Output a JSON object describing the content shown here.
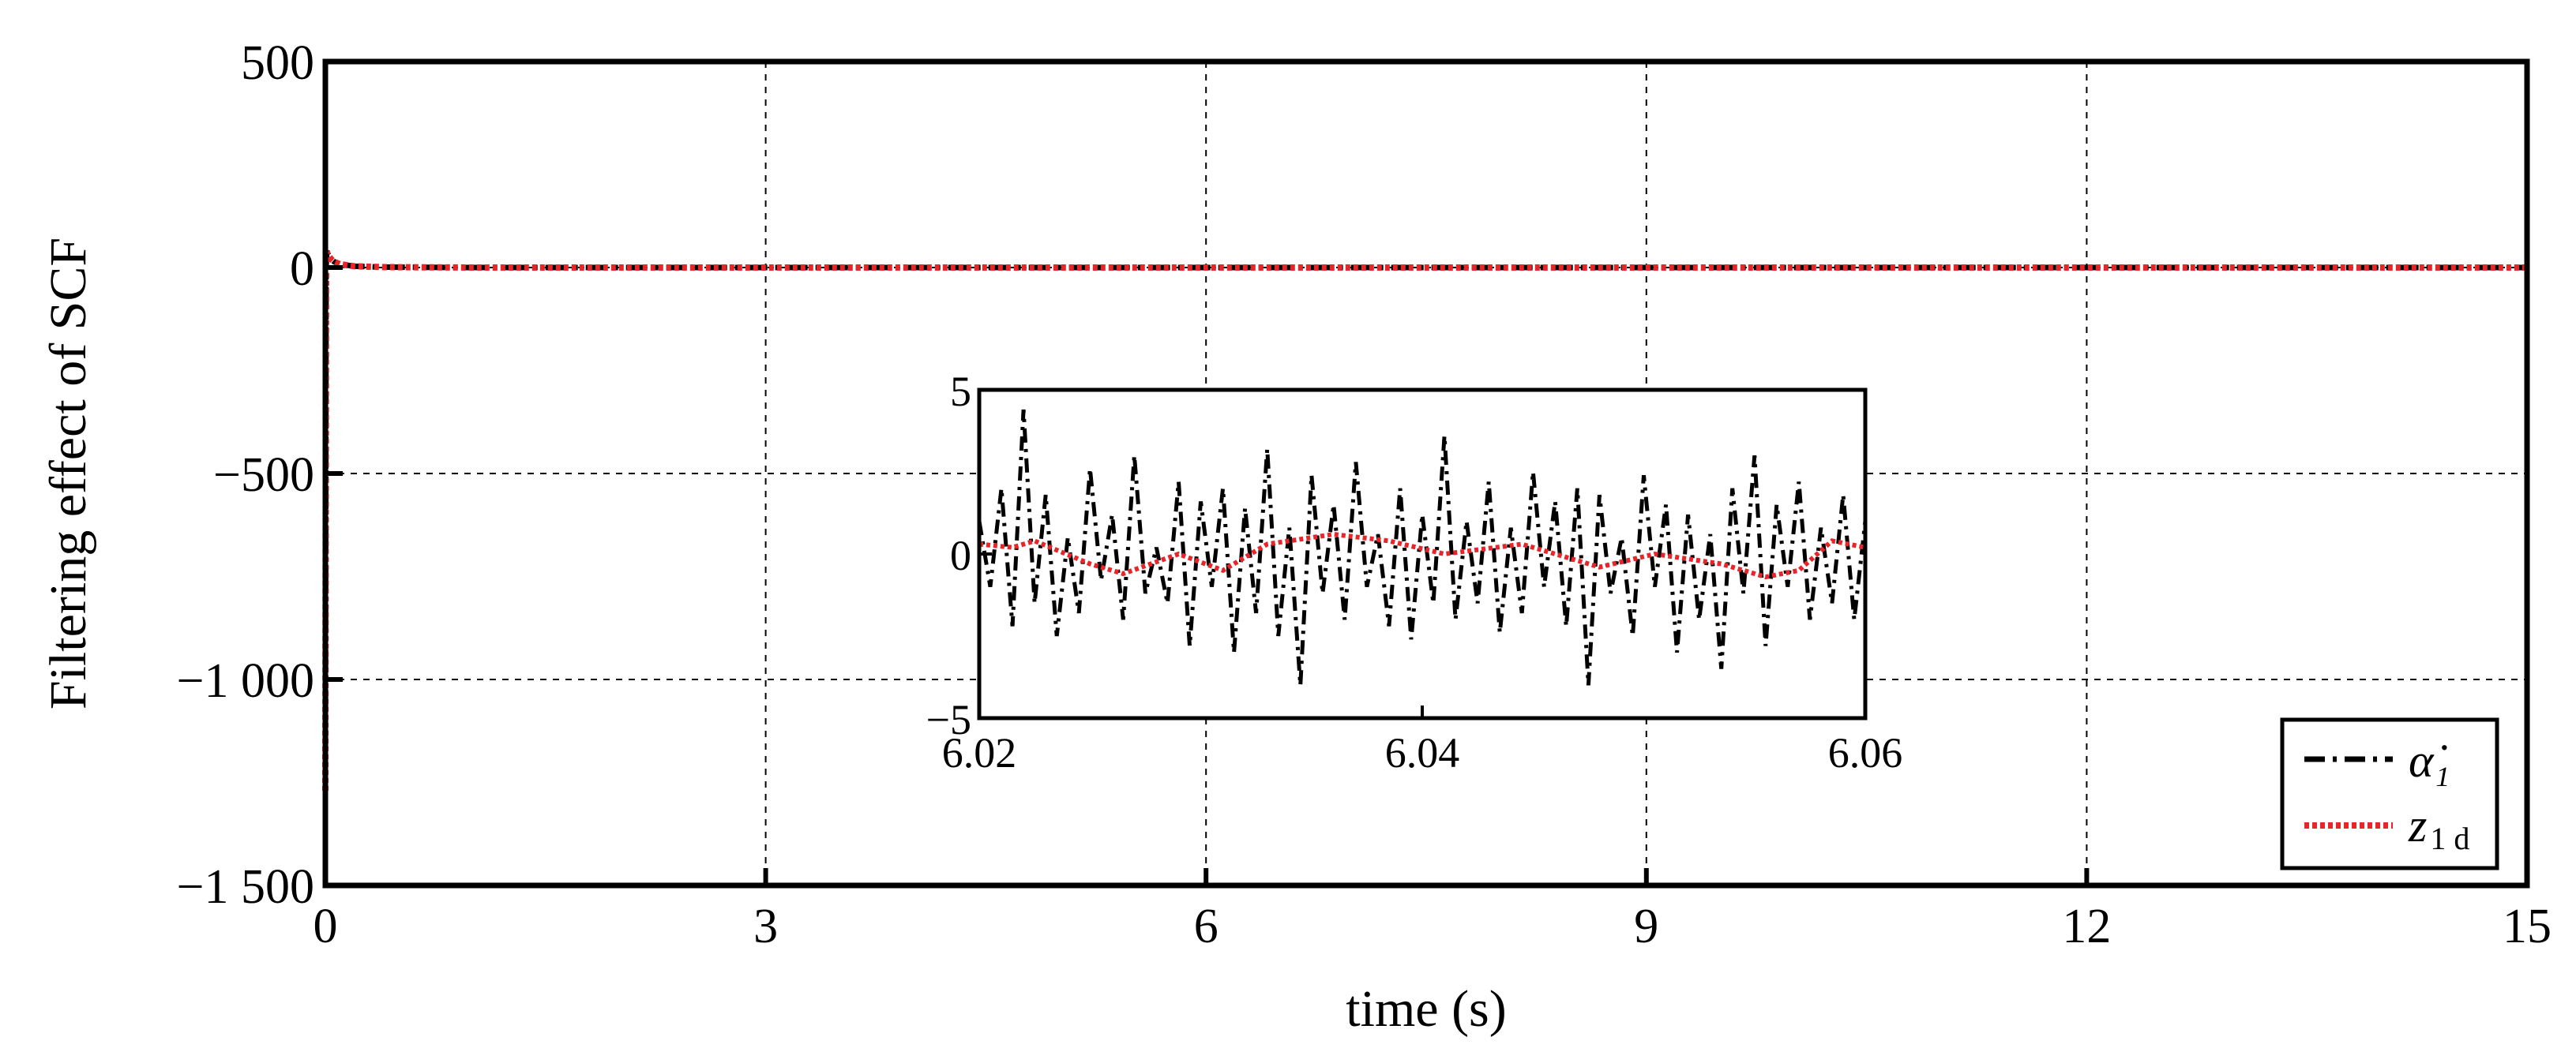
{
  "chart_data": [
    {
      "type": "line",
      "xlabel": "time (s)",
      "ylabel": "Filtering effect of SCF",
      "xlim": [
        0,
        15
      ],
      "ylim": [
        -1500,
        500
      ],
      "xticks": [
        0,
        3,
        6,
        9,
        12,
        15
      ],
      "xtick_labels": [
        "0",
        "3",
        "6",
        "9",
        "12",
        "15"
      ],
      "yticks": [
        500,
        0,
        -500,
        -1000,
        -1500
      ],
      "ytick_labels": [
        "500",
        "0",
        "−500",
        "−1 000",
        "−1 500"
      ],
      "grid": true,
      "legend_position": "bottom-right",
      "series": [
        {
          "name": "α̇₁",
          "style": "dash-dot",
          "color": "#000000",
          "x": [
            0.0,
            0.005,
            0.01,
            0.02,
            0.04,
            0.06,
            0.1,
            0.2,
            0.4,
            1,
            3,
            6,
            9,
            12,
            15
          ],
          "y": [
            -1270,
            0,
            40,
            30,
            20,
            14,
            8,
            3,
            1,
            0,
            0,
            0,
            0,
            0,
            0
          ]
        },
        {
          "name": "z1d",
          "style": "dotted",
          "color": "#e8262a",
          "x": [
            0.0,
            0.005,
            0.01,
            0.02,
            0.04,
            0.06,
            0.1,
            0.2,
            0.4,
            1,
            3,
            6,
            9,
            12,
            15
          ],
          "y": [
            -1270,
            0,
            38,
            30,
            20,
            14,
            8,
            3,
            1,
            0,
            0,
            0,
            0,
            0,
            0
          ]
        }
      ]
    },
    {
      "type": "line",
      "role": "inset",
      "xlim": [
        6.02,
        6.06
      ],
      "ylim": [
        -5,
        5
      ],
      "xticks": [
        6.02,
        6.04,
        6.06
      ],
      "xtick_labels": [
        "6.02",
        "6.04",
        "6.06"
      ],
      "yticks": [
        5,
        0,
        -5
      ],
      "ytick_labels": [
        "5",
        "0",
        "−5"
      ],
      "grid": false,
      "series": [
        {
          "name": "α̇₁",
          "style": "dash-dot",
          "color": "#000000",
          "x": [
            6.02,
            6.0205,
            6.021,
            6.0215,
            6.022,
            6.0225,
            6.023,
            6.0235,
            6.024,
            6.0245,
            6.025,
            6.0255,
            6.026,
            6.0265,
            6.027,
            6.0275,
            6.028,
            6.0285,
            6.029,
            6.0295,
            6.03,
            6.0305,
            6.031,
            6.0315,
            6.032,
            6.0325,
            6.033,
            6.0335,
            6.034,
            6.0345,
            6.035,
            6.0355,
            6.036,
            6.0365,
            6.037,
            6.0375,
            6.038,
            6.0385,
            6.039,
            6.0395,
            6.04,
            6.0405,
            6.041,
            6.0415,
            6.042,
            6.0425,
            6.043,
            6.0435,
            6.044,
            6.0445,
            6.045,
            6.0455,
            6.046,
            6.0465,
            6.047,
            6.0475,
            6.048,
            6.0485,
            6.049,
            6.0495,
            6.05,
            6.0505,
            6.051,
            6.0515,
            6.052,
            6.0525,
            6.053,
            6.0535,
            6.054,
            6.0545,
            6.055,
            6.0555,
            6.056,
            6.0565,
            6.057,
            6.0575,
            6.058,
            6.0585,
            6.059,
            6.0595,
            6.06
          ],
          "y": [
            1.0,
            -1.0,
            2.0,
            -2.2,
            4.4,
            -1.5,
            1.8,
            -2.5,
            0.5,
            -1.8,
            2.6,
            -0.8,
            1.2,
            -2.0,
            3.0,
            -1.2,
            0.2,
            -1.5,
            2.2,
            -2.8,
            1.6,
            -1.0,
            2.0,
            -3.0,
            1.4,
            -1.8,
            3.2,
            -2.5,
            0.8,
            -4.0,
            2.4,
            -1.2,
            1.5,
            -2.0,
            2.8,
            -1.0,
            0.6,
            -2.2,
            2.0,
            -2.6,
            1.2,
            -1.5,
            3.6,
            -2.0,
            1.0,
            -1.5,
            2.2,
            -2.4,
            0.8,
            -1.8,
            2.5,
            -1.0,
            1.6,
            -2.2,
            2.0,
            -4.0,
            1.8,
            -1.2,
            0.5,
            -2.5,
            2.4,
            -1.0,
            1.5,
            -3.0,
            1.2,
            -2.0,
            0.6,
            -3.5,
            2.0,
            -1.2,
            3.0,
            -2.8,
            1.5,
            -1.0,
            2.2,
            -2.0,
            0.8,
            -1.5,
            1.8,
            -2.0,
            1.0
          ]
        },
        {
          "name": "z1d",
          "style": "dotted",
          "color": "#e8262a",
          "x": [
            6.02,
            6.0215,
            6.0225,
            6.025,
            6.0265,
            6.029,
            6.031,
            6.033,
            6.036,
            6.0385,
            6.041,
            6.0445,
            6.048,
            6.0505,
            6.0535,
            6.0555,
            6.057,
            6.0585,
            6.06
          ],
          "y": [
            0.3,
            0.2,
            0.4,
            -0.3,
            -0.6,
            0.0,
            -0.5,
            0.3,
            0.6,
            0.4,
            0.0,
            0.3,
            -0.4,
            0.0,
            -0.3,
            -0.7,
            -0.5,
            0.4,
            0.2
          ]
        }
      ]
    }
  ]
}
